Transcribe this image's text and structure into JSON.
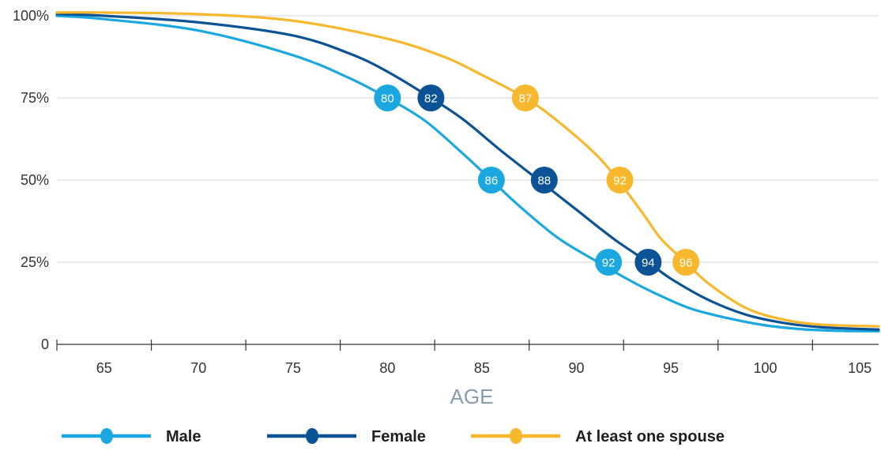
{
  "chart_data": {
    "type": "line",
    "title": "",
    "xlabel": "AGE",
    "ylabel": "",
    "xlim": [
      62.5,
      106
    ],
    "ylim": [
      0,
      100
    ],
    "x_ticks": [
      65,
      70,
      75,
      80,
      85,
      90,
      95,
      100,
      105
    ],
    "y_ticks": [
      {
        "value": 0,
        "label": "0"
      },
      {
        "value": 25,
        "label": "25%"
      },
      {
        "value": 50,
        "label": "50%"
      },
      {
        "value": 75,
        "label": "75%"
      },
      {
        "value": 100,
        "label": "100%"
      }
    ],
    "grid": true,
    "legend_position": "bottom",
    "series": [
      {
        "name": "Male",
        "color": "#1ba8e0",
        "x": [
          62.5,
          65,
          70,
          75,
          78,
          80,
          82,
          84,
          85.5,
          87,
          89,
          91,
          92.5,
          94,
          96,
          98,
          100,
          102,
          104,
          106
        ],
        "y": [
          100,
          99,
          95.5,
          88,
          81,
          75,
          68,
          58,
          50,
          42,
          32.5,
          25.5,
          20.5,
          16,
          11,
          8,
          5.8,
          4.6,
          4.1,
          4
        ],
        "markers": [
          {
            "x": 80,
            "y": 75,
            "label": "80"
          },
          {
            "x": 85.5,
            "y": 50,
            "label": "86"
          },
          {
            "x": 91.7,
            "y": 25,
            "label": "92"
          }
        ]
      },
      {
        "name": "Female",
        "color": "#0b5394",
        "x": [
          62.5,
          65,
          70,
          75,
          78,
          80,
          82.3,
          84,
          86,
          88,
          90,
          92,
          93.8,
          95,
          97,
          99,
          101,
          103,
          106
        ],
        "y": [
          100.5,
          100,
          98,
          94,
          88.5,
          83,
          75,
          68.5,
          59,
          50,
          41,
          32,
          25,
          20,
          13.5,
          9,
          6.5,
          5.2,
          4.5
        ],
        "markers": [
          {
            "x": 82.3,
            "y": 75,
            "label": "82"
          },
          {
            "x": 88.3,
            "y": 50,
            "label": "88"
          },
          {
            "x": 93.8,
            "y": 25,
            "label": "94"
          }
        ]
      },
      {
        "name": "At least one spouse",
        "color": "#f7b82e",
        "x": [
          62.5,
          65,
          70,
          75,
          80,
          83,
          85,
          87.3,
          89,
          91,
          92.2,
          93.5,
          94.5,
          95.8,
          97,
          99,
          101,
          103,
          106
        ],
        "y": [
          101,
          101,
          100.5,
          98.5,
          93,
          87.5,
          82,
          75,
          68,
          58,
          50,
          40,
          32,
          25,
          18.5,
          11,
          7.5,
          6,
          5.5
        ],
        "markers": [
          {
            "x": 87.3,
            "y": 75,
            "label": "87"
          },
          {
            "x": 92.3,
            "y": 50,
            "label": "92"
          },
          {
            "x": 95.8,
            "y": 25,
            "label": "96"
          }
        ]
      }
    ]
  }
}
